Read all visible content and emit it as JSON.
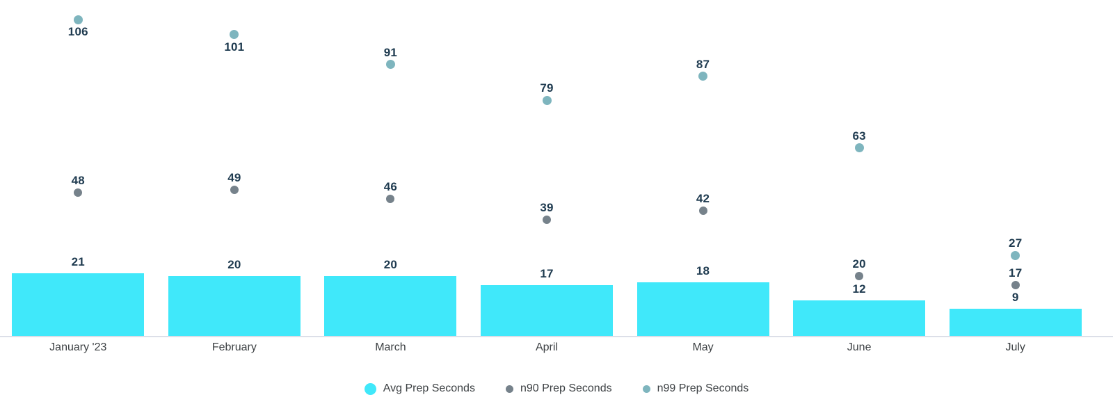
{
  "chart_data": {
    "type": "bar",
    "subtype": "combo-bar-scatter",
    "categories": [
      "January '23",
      "February",
      "March",
      "April",
      "May",
      "June",
      "July"
    ],
    "series": [
      {
        "name": "Avg Prep Seconds",
        "render": "bar",
        "color": "#40E8FA",
        "values": [
          21,
          20,
          20,
          17,
          18,
          12,
          9
        ]
      },
      {
        "name": "n90 Prep Seconds",
        "render": "scatter",
        "color": "#76828B",
        "values": [
          48,
          49,
          46,
          39,
          42,
          20,
          17
        ]
      },
      {
        "name": "n99 Prep Seconds",
        "render": "scatter",
        "color": "#7EB5BE",
        "values": [
          106,
          101,
          91,
          79,
          87,
          63,
          27
        ]
      }
    ],
    "title": "",
    "xlabel": "",
    "ylabel": "",
    "ylim": [
      0,
      110
    ],
    "grid": false,
    "value_labels_shown": true,
    "legend_position": "bottom",
    "colors": {
      "annotation_text": "#1F3B50",
      "axis_label_text": "#3C4043",
      "legend_text": "#3C4043",
      "axis_line": "#DCDFE8",
      "background": "#FFFFFF"
    }
  }
}
